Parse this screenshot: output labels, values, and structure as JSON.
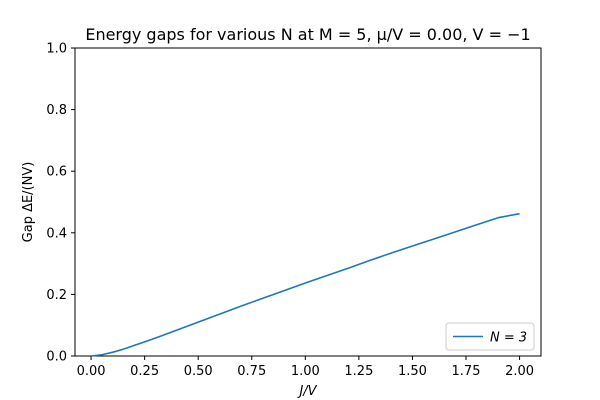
{
  "chart_data": {
    "type": "line",
    "title": "Energy gaps for various N at M = 5, μ/V = 0.00, V = −1",
    "xlabel": "J/V",
    "ylabel": "Gap ΔE/(NV)",
    "xlim": [
      -0.075,
      2.1
    ],
    "ylim": [
      0.0,
      1.0
    ],
    "xticks": [
      0.0,
      0.25,
      0.5,
      0.75,
      1.0,
      1.25,
      1.5,
      1.75,
      2.0
    ],
    "xtick_labels": [
      "0.00",
      "0.25",
      "0.50",
      "0.75",
      "1.00",
      "1.25",
      "1.50",
      "1.75",
      "2.00"
    ],
    "yticks": [
      0.0,
      0.2,
      0.4,
      0.6,
      0.8,
      1.0
    ],
    "ytick_labels": [
      "0.0",
      "0.2",
      "0.4",
      "0.6",
      "0.8",
      "1.0"
    ],
    "grid": false,
    "legend_position": "lower-right",
    "series": [
      {
        "name": "N = 3",
        "color": "#1f77b4",
        "x": [
          0.0,
          0.05,
          0.1,
          0.15,
          0.2,
          0.25,
          0.3,
          0.35,
          0.4,
          0.45,
          0.5,
          0.6,
          0.7,
          0.8,
          0.9,
          1.0,
          1.1,
          1.2,
          1.3,
          1.4,
          1.5,
          1.6,
          1.7,
          1.8,
          1.9,
          2.0
        ],
        "y": [
          0.0,
          0.004,
          0.012,
          0.022,
          0.034,
          0.046,
          0.058,
          0.071,
          0.084,
          0.097,
          0.11,
          0.136,
          0.162,
          0.187,
          0.212,
          0.237,
          0.261,
          0.285,
          0.31,
          0.334,
          0.357,
          0.38,
          0.403,
          0.426,
          0.449,
          0.462
        ]
      }
    ]
  }
}
